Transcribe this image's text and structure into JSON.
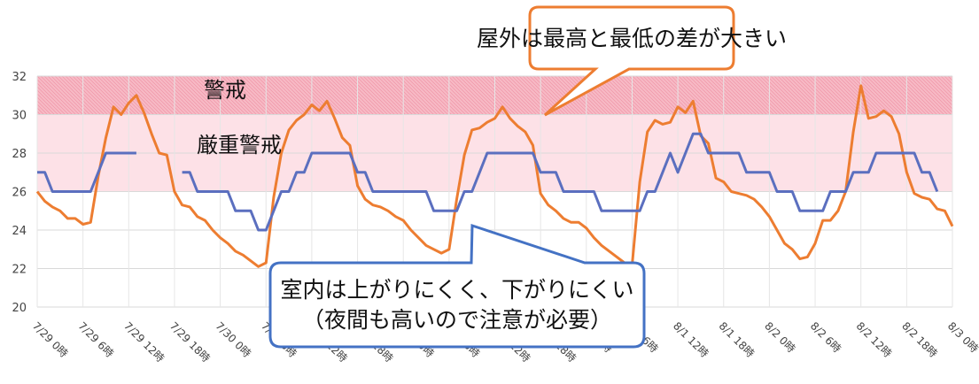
{
  "chart_data": {
    "type": "line",
    "categories": [
      "7/29 0時",
      null,
      null,
      null,
      null,
      null,
      "7/29 6時",
      null,
      null,
      null,
      null,
      null,
      "7/29 12時",
      null,
      null,
      null,
      null,
      null,
      "7/29 18時",
      null,
      null,
      null,
      null,
      null,
      "7/30 0時",
      null,
      null,
      null,
      null,
      null,
      "7/30 6時",
      null,
      null,
      null,
      null,
      null,
      "7/30 12時",
      null,
      null,
      null,
      null,
      null,
      "7/30 18時",
      null,
      null,
      null,
      null,
      null,
      "7/31 0時",
      null,
      null,
      null,
      null,
      null,
      "7/31 6時",
      null,
      null,
      null,
      null,
      null,
      "7/31 12時",
      null,
      null,
      null,
      null,
      null,
      "7/31 18時",
      null,
      null,
      null,
      null,
      null,
      "8/1 0時",
      null,
      null,
      null,
      null,
      null,
      "8/1 6時",
      null,
      null,
      null,
      null,
      null,
      "8/1 12時",
      null,
      null,
      null,
      null,
      null,
      "8/1 18時",
      null,
      null,
      null,
      null,
      null,
      "8/2 0時",
      null,
      null,
      null,
      null,
      null,
      "8/2 6時",
      null,
      null,
      null,
      null,
      null,
      "8/2 12時",
      null,
      null,
      null,
      null,
      null,
      "8/2 18時",
      null,
      null,
      null,
      null,
      null,
      "8/3 0時"
    ],
    "series": [
      {
        "name": "屋外",
        "color": "#ED7D31",
        "values": [
          26,
          25.5,
          25.2,
          25,
          24.6,
          24.6,
          24.3,
          24.4,
          26.8,
          28.8,
          30.4,
          30,
          30.6,
          31,
          30.1,
          29,
          28,
          27.9,
          26,
          25.3,
          25.2,
          24.7,
          24.5,
          24,
          23.6,
          23.3,
          22.9,
          22.7,
          22.4,
          22.1,
          22.3,
          25.7,
          28,
          29.2,
          29.7,
          30,
          30.5,
          30.2,
          30.7,
          29.8,
          28.8,
          28.4,
          26.3,
          25.6,
          25.3,
          25.2,
          25,
          24.7,
          24.5,
          24,
          23.6,
          23.2,
          23,
          22.8,
          23,
          25.6,
          27.9,
          29.2,
          29.3,
          29.6,
          29.8,
          30.4,
          29.8,
          29.4,
          29.1,
          28.4,
          25.9,
          25.3,
          25,
          24.6,
          24.4,
          24.4,
          24.1,
          23.6,
          23.2,
          22.9,
          22.6,
          22.3,
          22.2,
          26.5,
          29.1,
          29.7,
          29.5,
          29.6,
          30.4,
          30.1,
          30.7,
          28.9,
          28.5,
          26.7,
          26.5,
          26,
          25.9,
          25.8,
          25.6,
          25.2,
          24.7,
          24,
          23.3,
          23,
          22.5,
          22.6,
          23.3,
          24.5,
          24.5,
          25,
          26,
          29.1,
          31.5,
          29.8,
          29.9,
          30.2,
          29.9,
          29,
          27,
          25.9,
          25.7,
          25.6,
          25.1,
          25,
          24.2
        ]
      },
      {
        "name": "室内",
        "color": "#5B6FBF",
        "values": [
          27,
          27,
          26,
          26,
          26,
          26,
          26,
          26,
          27,
          28,
          28,
          28,
          28,
          28,
          null,
          null,
          null,
          null,
          null,
          27,
          27,
          26,
          26,
          26,
          26,
          26,
          25,
          25,
          25,
          24,
          24,
          25,
          26,
          26,
          27,
          27,
          28,
          28,
          28,
          28,
          28,
          28,
          27,
          27,
          26,
          26,
          26,
          26,
          26,
          26,
          26,
          26,
          25,
          25,
          25,
          25,
          26,
          26,
          27,
          28,
          28,
          28,
          28,
          28,
          28,
          28,
          27,
          27,
          27,
          26,
          26,
          26,
          26,
          26,
          25,
          25,
          25,
          25,
          25,
          25,
          26,
          26,
          27,
          28,
          27,
          28,
          29,
          29,
          28,
          28,
          28,
          28,
          28,
          27,
          27,
          27,
          27,
          26,
          26,
          26,
          25,
          25,
          25,
          25,
          26,
          26,
          26,
          27,
          27,
          27,
          28,
          28,
          28,
          28,
          28,
          28,
          27,
          27,
          26,
          null,
          null
        ]
      }
    ],
    "bands": [
      {
        "label": "警戒",
        "from": 30,
        "to": 32,
        "color": "#f4a3b3"
      },
      {
        "label": "厳重警戒",
        "from": 26,
        "to": 30,
        "color": "#fde1e7"
      }
    ],
    "annotations": [
      {
        "text": "屋外は最高と最低の差が大きい"
      },
      {
        "text": "室内は上がりにくく、下がりにくい"
      },
      {
        "text": "（夜間も高いので注意が必要）"
      }
    ],
    "ylim": [
      20,
      32
    ],
    "yticks": [
      20,
      22,
      24,
      26,
      28,
      30,
      32
    ],
    "grid": true
  }
}
